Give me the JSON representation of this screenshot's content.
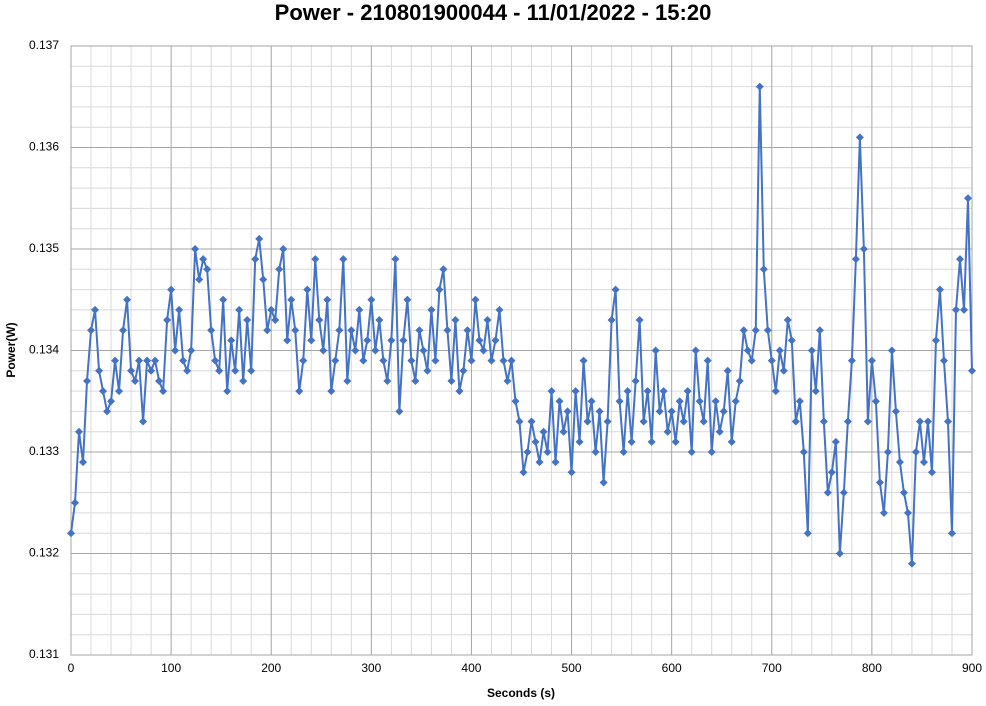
{
  "chart_data": {
    "type": "line",
    "title": "Power - 210801900044 - 11/01/2022 - 15:20",
    "xlabel": "Seconds (s)",
    "ylabel": "Power(W)",
    "xlim": [
      0,
      900
    ],
    "xticks": [
      0,
      100,
      200,
      300,
      400,
      500,
      600,
      700,
      800,
      900
    ],
    "ylim": [
      0.131,
      0.137
    ],
    "yticks": [
      0.131,
      0.132,
      0.133,
      0.134,
      0.135,
      0.136,
      0.137
    ],
    "xgrid_minor": [
      20,
      40,
      60,
      80,
      120,
      140,
      160,
      180,
      220,
      240,
      260,
      280,
      320,
      340,
      360,
      380,
      420,
      440,
      460,
      480,
      520,
      540,
      560,
      580,
      620,
      640,
      660,
      680,
      720,
      740,
      760,
      780,
      820,
      840,
      860,
      880
    ],
    "ygrid_minor": [
      0.1312,
      0.1314,
      0.1316,
      0.1318,
      0.1322,
      0.1324,
      0.1326,
      0.1328,
      0.1332,
      0.1334,
      0.1336,
      0.1338,
      0.1342,
      0.1344,
      0.1346,
      0.1348,
      0.1352,
      0.1354,
      0.1356,
      0.1358,
      0.1362,
      0.1364,
      0.1366,
      0.1368
    ],
    "grid": true,
    "series": [
      {
        "color": "#4472c4",
        "x": [
          0,
          4,
          8,
          12,
          16,
          20,
          24,
          28,
          32,
          36,
          40,
          44,
          48,
          52,
          56,
          60,
          64,
          68,
          72,
          76,
          80,
          84,
          88,
          92,
          96,
          100,
          104,
          108,
          112,
          116,
          120,
          124,
          128,
          132,
          136,
          140,
          144,
          148,
          152,
          156,
          160,
          164,
          168,
          172,
          176,
          180,
          184,
          188,
          192,
          196,
          200,
          204,
          208,
          212,
          216,
          220,
          224,
          228,
          232,
          236,
          240,
          244,
          248,
          252,
          256,
          260,
          264,
          268,
          272,
          276,
          280,
          284,
          288,
          292,
          296,
          300,
          304,
          308,
          312,
          316,
          320,
          324,
          328,
          332,
          336,
          340,
          344,
          348,
          352,
          356,
          360,
          364,
          368,
          372,
          376,
          380,
          384,
          388,
          392,
          396,
          400,
          404,
          408,
          412,
          416,
          420,
          424,
          428,
          432,
          436,
          440,
          444,
          448,
          452,
          456,
          460,
          464,
          468,
          472,
          476,
          480,
          484,
          488,
          492,
          496,
          500,
          504,
          508,
          512,
          516,
          520,
          524,
          528,
          532,
          536,
          540,
          544,
          548,
          552,
          556,
          560,
          564,
          568,
          572,
          576,
          580,
          584,
          588,
          592,
          596,
          600,
          604,
          608,
          612,
          616,
          620,
          624,
          628,
          632,
          636,
          640,
          644,
          648,
          652,
          656,
          660,
          664,
          668,
          672,
          676,
          680,
          684,
          688,
          692,
          696,
          700,
          704,
          708,
          712,
          716,
          720,
          724,
          728,
          732,
          736,
          740,
          744,
          748,
          752,
          756,
          760,
          764,
          768,
          772,
          776,
          780,
          784,
          788,
          792,
          796,
          800,
          804,
          808,
          812,
          816,
          820,
          824,
          828,
          832,
          836,
          840,
          844,
          848,
          852,
          856,
          860,
          864,
          868,
          872,
          876,
          880,
          884,
          888,
          892,
          896,
          900
        ],
        "values": [
          0.1322,
          0.1325,
          0.1332,
          0.1329,
          0.1337,
          0.1342,
          0.1344,
          0.1338,
          0.1336,
          0.1334,
          0.1335,
          0.1339,
          0.1336,
          0.1342,
          0.1345,
          0.1338,
          0.1337,
          0.1339,
          0.1333,
          0.1339,
          0.1338,
          0.1339,
          0.1337,
          0.1336,
          0.1343,
          0.1346,
          0.134,
          0.1344,
          0.1339,
          0.1338,
          0.134,
          0.135,
          0.1347,
          0.1349,
          0.1348,
          0.1342,
          0.1339,
          0.1338,
          0.1345,
          0.1336,
          0.1341,
          0.1338,
          0.1344,
          0.1337,
          0.1343,
          0.1338,
          0.1349,
          0.1351,
          0.1347,
          0.1342,
          0.1344,
          0.1343,
          0.1348,
          0.135,
          0.1341,
          0.1345,
          0.1342,
          0.1336,
          0.1339,
          0.1346,
          0.1341,
          0.1349,
          0.1343,
          0.134,
          0.1345,
          0.1336,
          0.1339,
          0.1342,
          0.1349,
          0.1337,
          0.1342,
          0.134,
          0.1344,
          0.1339,
          0.1341,
          0.1345,
          0.134,
          0.1343,
          0.1339,
          0.1337,
          0.1341,
          0.1349,
          0.1334,
          0.1341,
          0.1345,
          0.1339,
          0.1337,
          0.1342,
          0.134,
          0.1338,
          0.1344,
          0.1339,
          0.1346,
          0.1348,
          0.1342,
          0.1337,
          0.1343,
          0.1336,
          0.1338,
          0.1342,
          0.1339,
          0.1345,
          0.1341,
          0.134,
          0.1343,
          0.1339,
          0.1341,
          0.1344,
          0.1339,
          0.1337,
          0.1339,
          0.1335,
          0.1333,
          0.1328,
          0.133,
          0.1333,
          0.1331,
          0.1329,
          0.1332,
          0.133,
          0.1336,
          0.1329,
          0.1335,
          0.1332,
          0.1334,
          0.1328,
          0.1336,
          0.1331,
          0.1339,
          0.1333,
          0.1335,
          0.133,
          0.1334,
          0.1327,
          0.1333,
          0.1343,
          0.1346,
          0.1335,
          0.133,
          0.1336,
          0.1331,
          0.1337,
          0.1343,
          0.1333,
          0.1336,
          0.1331,
          0.134,
          0.1334,
          0.1336,
          0.1332,
          0.1334,
          0.1331,
          0.1335,
          0.1333,
          0.1336,
          0.133,
          0.134,
          0.1335,
          0.1333,
          0.1339,
          0.133,
          0.1335,
          0.1332,
          0.1334,
          0.1338,
          0.1331,
          0.1335,
          0.1337,
          0.1342,
          0.134,
          0.1339,
          0.1342,
          0.1366,
          0.1348,
          0.1342,
          0.1339,
          0.1336,
          0.134,
          0.1338,
          0.1343,
          0.1341,
          0.1333,
          0.1335,
          0.133,
          0.1322,
          0.134,
          0.1336,
          0.1342,
          0.1333,
          0.1326,
          0.1328,
          0.1331,
          0.132,
          0.1326,
          0.1333,
          0.1339,
          0.1349,
          0.1361,
          0.135,
          0.1333,
          0.1339,
          0.1335,
          0.1327,
          0.1324,
          0.133,
          0.134,
          0.1334,
          0.1329,
          0.1326,
          0.1324,
          0.1319,
          0.133,
          0.1333,
          0.1329,
          0.1333,
          0.1328,
          0.1341,
          0.1346,
          0.1339,
          0.1333,
          0.1322,
          0.1344,
          0.1349,
          0.1344,
          0.1355,
          0.1338
        ]
      }
    ]
  }
}
